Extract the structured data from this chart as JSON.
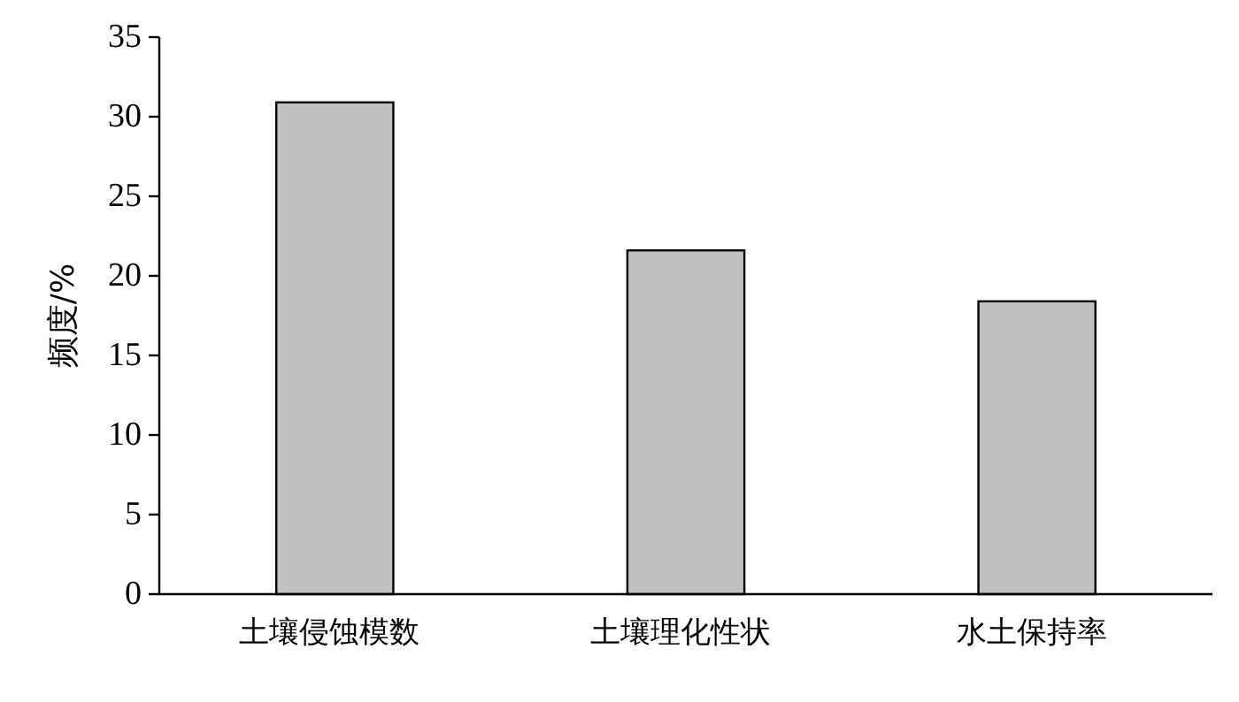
{
  "chart_data": {
    "type": "bar",
    "ylabel": "频度/%",
    "categories": [
      "土壤侵蚀模数",
      "土壤理化性状",
      "水土保持率"
    ],
    "values": [
      30.9,
      21.6,
      18.4
    ],
    "color": "#c0c0c0",
    "ylim": [
      0,
      35
    ],
    "yticks": [
      0,
      5,
      10,
      15,
      20,
      25,
      30,
      35
    ]
  }
}
